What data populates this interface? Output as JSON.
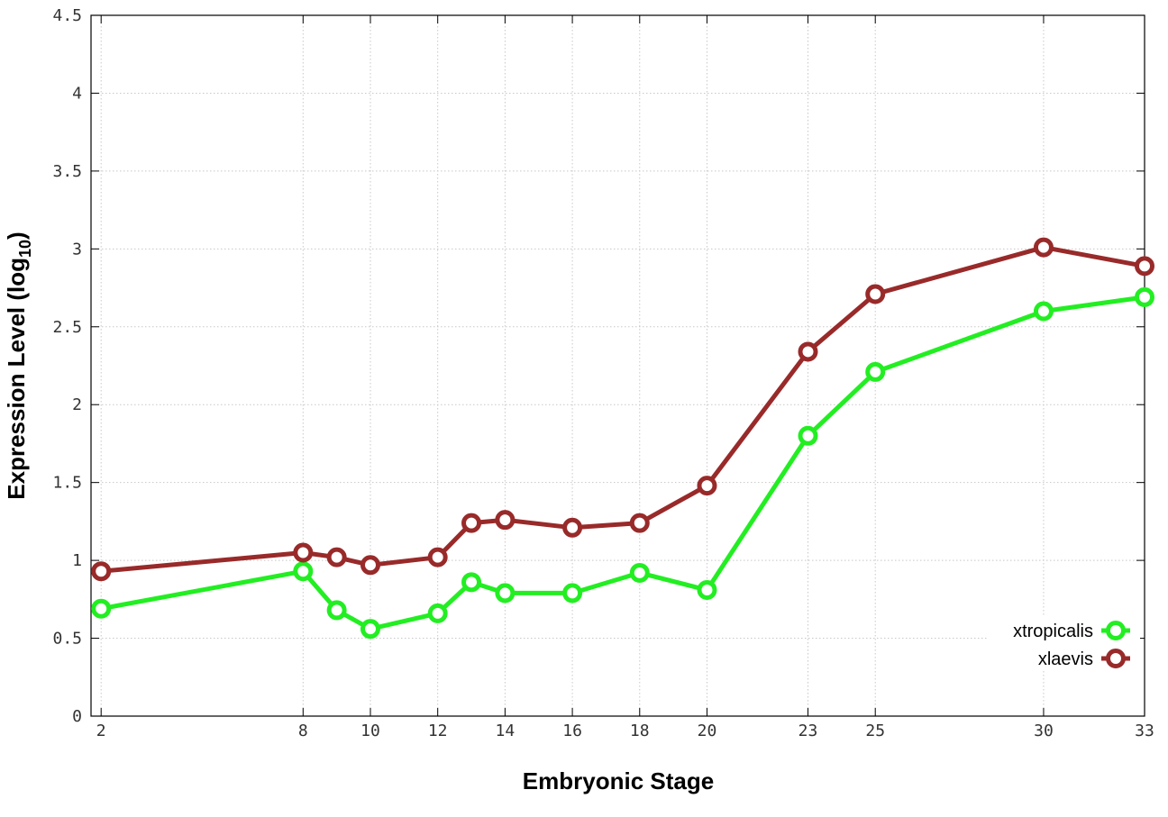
{
  "chart_data": {
    "type": "line",
    "xlabel": "Embryonic Stage",
    "ylabel": "Expression Level (log",
    "ylabel_subscript": "10",
    "ylabel_suffix": ")",
    "xlim": [
      1.7,
      33
    ],
    "ylim": [
      0,
      4.5
    ],
    "x_ticks": [
      2,
      8,
      10,
      12,
      14,
      16,
      18,
      20,
      23,
      25,
      30,
      33
    ],
    "x_tick_labels": [
      "2",
      "8",
      "10",
      "12",
      "14",
      "16",
      "18",
      "20",
      "23",
      "25",
      "30",
      "33"
    ],
    "y_ticks": [
      0,
      0.5,
      1,
      1.5,
      2,
      2.5,
      3,
      3.5,
      4,
      4.5
    ],
    "y_tick_labels": [
      "0",
      "0.5",
      "1",
      "1.5",
      "2",
      "2.5",
      "3",
      "3.5",
      "4",
      "4.5"
    ],
    "grid": true,
    "legend_position": "bottom-right",
    "x": [
      2,
      8,
      9,
      10,
      12,
      13,
      14,
      16,
      18,
      20,
      23,
      25,
      30,
      33
    ],
    "series": [
      {
        "name": "xtropicalis",
        "color": "#22ee22",
        "values": [
          0.69,
          0.93,
          0.68,
          0.56,
          0.66,
          0.86,
          0.79,
          0.79,
          0.92,
          0.81,
          1.8,
          2.21,
          2.6,
          2.69
        ]
      },
      {
        "name": "xlaevis",
        "color": "#992a2a",
        "values": [
          0.93,
          1.05,
          1.02,
          0.97,
          1.02,
          1.24,
          1.26,
          1.21,
          1.24,
          1.48,
          2.34,
          2.71,
          3.01,
          2.89
        ]
      }
    ]
  }
}
